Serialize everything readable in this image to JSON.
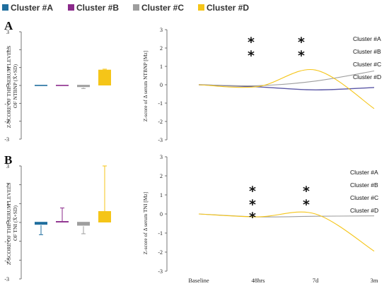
{
  "colors": {
    "A": "#1f6e9e",
    "B": "#8b2a8b",
    "C": "#9e9e9e",
    "D": "#f5c518"
  },
  "legend": [
    "Cluster #A",
    "Cluster #B",
    "Cluster #C",
    "Cluster #D"
  ],
  "chart_data": [
    {
      "panel": "A",
      "type": "bar",
      "ylabel": "Z-SCORE OF THE SERUM LEVELS OF NTBNP (X̄+SD)",
      "yticks": [
        "3",
        "2",
        "1",
        "0",
        "-1",
        "-2",
        "-3"
      ],
      "ylim": [
        -3,
        3
      ],
      "series": [
        {
          "name": "Cluster #A",
          "value": 0.0,
          "err": 0.0
        },
        {
          "name": "Cluster #B",
          "value": 0.02,
          "err": 0.0
        },
        {
          "name": "Cluster #C",
          "value": -0.12,
          "err": 0.05
        },
        {
          "name": "Cluster #D",
          "value": 0.88,
          "err": 0.03
        }
      ]
    },
    {
      "panel": "A",
      "type": "line",
      "ylabel": "Z-score of Δ serum NTBNP [Mz]",
      "yticks": [
        "3",
        "2",
        "1",
        "0",
        "-1",
        "-2",
        "-3"
      ],
      "ylim": [
        -3,
        3
      ],
      "x": [
        "Baseline",
        "48hrs",
        "7d",
        "3m"
      ],
      "series": [
        {
          "name": "Cluster #A",
          "values": [
            0,
            -0.12,
            -0.28,
            -0.15
          ]
        },
        {
          "name": "Cluster #C",
          "values": [
            0,
            -0.05,
            0.2,
            0.75
          ]
        },
        {
          "name": "Cluster #D",
          "values": [
            0,
            -0.1,
            0.8,
            -1.3
          ]
        }
      ],
      "annotations": [
        "Cluster #A",
        "Cluster #B",
        "Cluster #C",
        "Cluster #D"
      ],
      "stars": [
        "*",
        "*",
        "*",
        "*"
      ]
    },
    {
      "panel": "B",
      "type": "bar",
      "ylabel": "Z-SCORE OF THE SERUM LEVELS OF TNI (X̄+SD)",
      "yticks": [
        "3",
        "2",
        "1",
        "0",
        "-1",
        "-2",
        "-3"
      ],
      "ylim": [
        -3,
        3
      ],
      "series": [
        {
          "name": "Cluster #A",
          "value": -0.15,
          "err": 0.5
        },
        {
          "name": "Cluster #B",
          "value": 0.07,
          "err": 0.7
        },
        {
          "name": "Cluster #C",
          "value": -0.2,
          "err": 0.4
        },
        {
          "name": "Cluster #D",
          "value": 0.6,
          "err": 2.4
        }
      ]
    },
    {
      "panel": "B",
      "type": "line",
      "ylabel": "Z-score of Δ serum TNI [Mz]",
      "yticks": [
        "3",
        "2",
        "1",
        "0",
        "-1",
        "-2",
        "-3"
      ],
      "ylim": [
        -3,
        3
      ],
      "x": [
        "Baseline",
        "48hrs",
        "7d",
        "3m"
      ],
      "series": [
        {
          "name": "Cluster #C",
          "values": [
            0,
            -0.15,
            -0.12,
            -0.1
          ]
        },
        {
          "name": "Cluster #D",
          "values": [
            0,
            -0.15,
            0.0,
            -1.95
          ]
        }
      ],
      "annotations": [
        "Cluster #A",
        "Cluster #B",
        "Cluster #C",
        "Cluster #D"
      ],
      "stars": [
        "*",
        "*",
        "*",
        "*",
        "*"
      ]
    }
  ]
}
